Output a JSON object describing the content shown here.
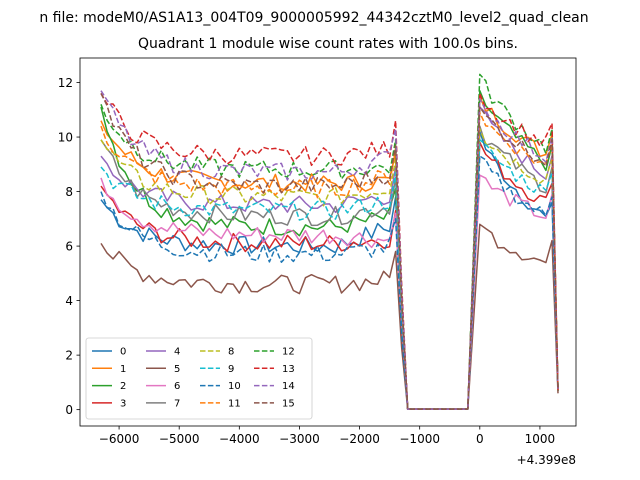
{
  "figure": {
    "title": "n file: modeM0/AS1A13_004T09_9000005992_44342cztM0_level2_quad_clean",
    "axis_title": "Quadrant 1 module wise count rates with 100.0s bins."
  },
  "chart_data": {
    "type": "line",
    "title": "Quadrant 1 module wise count rates with 100.0s bins.",
    "xlabel": "",
    "ylabel": "",
    "x_offset_label": "+4.399e8",
    "xlim": [
      -6650,
      1600
    ],
    "ylim": [
      -0.6,
      12.9
    ],
    "xticks": [
      -6000,
      -5000,
      -4000,
      -3000,
      -2000,
      -1000,
      0,
      1000
    ],
    "xtick_labels": [
      "−6000",
      "−5000",
      "−4000",
      "−3000",
      "−2000",
      "−1000",
      "0",
      "1000"
    ],
    "yticks": [
      0,
      2,
      4,
      6,
      8,
      10,
      12
    ],
    "ytick_labels": [
      "0",
      "2",
      "4",
      "6",
      "8",
      "10",
      "12"
    ],
    "grid": false,
    "legend_position": "lower-left",
    "segments": {
      "seg1_x_start": -6300,
      "seg1_x_end": -1400,
      "step": 100,
      "drop_x": -1200,
      "gap_x_end": -200,
      "seg2_x_start": 0,
      "seg2_x_end": 1300
    },
    "series": [
      {
        "name": "0",
        "color": "#1f77b4",
        "dash": "solid",
        "seg1_start": 7.7,
        "seg1_level": 6.0,
        "seg1_last": 6.8,
        "seg2_peak": 10.2,
        "seg2_end": 6.6,
        "final": 0.7
      },
      {
        "name": "1",
        "color": "#ff7f0e",
        "dash": "solid",
        "seg1_start": 10.6,
        "seg1_level": 8.3,
        "seg1_last": 8.4,
        "seg2_peak": 11.5,
        "seg2_end": 9.1,
        "final": 0.7
      },
      {
        "name": "2",
        "color": "#2ca02c",
        "dash": "solid",
        "seg1_start": 11.1,
        "seg1_level": 6.7,
        "seg1_last": 7.1,
        "seg2_peak": 11.7,
        "seg2_end": 8.7,
        "final": 0.7
      },
      {
        "name": "3",
        "color": "#d62728",
        "dash": "solid",
        "seg1_start": 8.2,
        "seg1_level": 6.1,
        "seg1_last": 6.3,
        "seg2_peak": 9.8,
        "seg2_end": 7.3,
        "final": 0.7
      },
      {
        "name": "4",
        "color": "#9467bd",
        "dash": "solid",
        "seg1_start": 9.3,
        "seg1_level": 7.5,
        "seg1_last": 7.9,
        "seg2_peak": 11.1,
        "seg2_end": 8.3,
        "final": 0.7
      },
      {
        "name": "5",
        "color": "#8c564b",
        "dash": "solid",
        "seg1_start": 6.1,
        "seg1_level": 4.6,
        "seg1_last": 4.8,
        "seg2_peak": 6.8,
        "seg2_end": 5.2,
        "final": 0.6
      },
      {
        "name": "6",
        "color": "#e377c2",
        "dash": "solid",
        "seg1_start": 8.5,
        "seg1_level": 6.4,
        "seg1_last": 6.2,
        "seg2_peak": 8.6,
        "seg2_end": 6.9,
        "final": 0.7
      },
      {
        "name": "7",
        "color": "#7f7f7f",
        "dash": "solid",
        "seg1_start": 9.9,
        "seg1_level": 7.1,
        "seg1_last": 7.5,
        "seg2_peak": 10.4,
        "seg2_end": 7.9,
        "final": 0.7
      },
      {
        "name": "8",
        "color": "#bcbd22",
        "dash": "dashed",
        "seg1_start": 9.9,
        "seg1_level": 7.8,
        "seg1_last": 8.2,
        "seg2_peak": 10.3,
        "seg2_end": 8.2,
        "final": 0.7
      },
      {
        "name": "9",
        "color": "#17becf",
        "dash": "dashed",
        "seg1_start": 8.9,
        "seg1_level": 7.3,
        "seg1_last": 7.7,
        "seg2_peak": 9.9,
        "seg2_end": 7.7,
        "final": 0.7
      },
      {
        "name": "10",
        "color": "#1f77b4",
        "dash": "dashed",
        "seg1_start": 8.0,
        "seg1_level": 5.7,
        "seg1_last": 6.0,
        "seg2_peak": 9.3,
        "seg2_end": 6.8,
        "final": 0.7
      },
      {
        "name": "11",
        "color": "#ff7f0e",
        "dash": "dashed",
        "seg1_start": 10.4,
        "seg1_level": 8.1,
        "seg1_last": 8.6,
        "seg2_peak": 10.9,
        "seg2_end": 8.7,
        "final": 0.7
      },
      {
        "name": "12",
        "color": "#2ca02c",
        "dash": "dashed",
        "seg1_start": 11.2,
        "seg1_level": 8.8,
        "seg1_last": 8.9,
        "seg2_peak": 12.3,
        "seg2_end": 9.3,
        "final": 0.7
      },
      {
        "name": "13",
        "color": "#d62728",
        "dash": "dashed",
        "seg1_start": 11.6,
        "seg1_level": 9.3,
        "seg1_last": 9.6,
        "seg2_peak": 11.6,
        "seg2_end": 9.5,
        "final": 0.7
      },
      {
        "name": "14",
        "color": "#9467bd",
        "dash": "dashed",
        "seg1_start": 11.7,
        "seg1_level": 8.7,
        "seg1_last": 9.3,
        "seg2_peak": 11.4,
        "seg2_end": 9.0,
        "final": 0.7
      },
      {
        "name": "15",
        "color": "#8c564b",
        "dash": "dashed",
        "seg1_start": 11.6,
        "seg1_level": 8.2,
        "seg1_last": 8.7,
        "seg2_peak": 11.1,
        "seg2_end": 8.9,
        "final": 0.7
      }
    ]
  }
}
